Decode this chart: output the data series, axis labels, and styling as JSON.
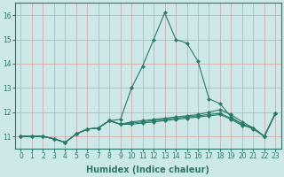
{
  "xlabel": "Humidex (Indice chaleur)",
  "background_color": "#cce8e8",
  "line_color": "#2a7a6a",
  "xlim": [
    -0.5,
    23.5
  ],
  "ylim": [
    10.5,
    16.5
  ],
  "yticks": [
    11,
    12,
    13,
    14,
    15,
    16
  ],
  "xticks": [
    0,
    1,
    2,
    3,
    4,
    5,
    6,
    7,
    8,
    9,
    10,
    11,
    12,
    13,
    14,
    15,
    16,
    17,
    18,
    19,
    20,
    21,
    22,
    23
  ],
  "series": [
    [
      11.0,
      11.0,
      11.0,
      10.9,
      10.75,
      11.1,
      11.3,
      11.35,
      11.65,
      11.7,
      13.0,
      13.9,
      15.0,
      16.1,
      15.0,
      14.85,
      14.1,
      12.55,
      12.35,
      11.8,
      11.5,
      11.3,
      11.0,
      11.95
    ],
    [
      11.0,
      11.0,
      11.0,
      10.9,
      10.75,
      11.1,
      11.3,
      11.35,
      11.65,
      11.5,
      11.6,
      11.65,
      11.7,
      11.75,
      11.8,
      11.85,
      11.9,
      12.0,
      12.1,
      11.9,
      11.6,
      11.35,
      11.0,
      11.95
    ],
    [
      11.0,
      11.0,
      11.0,
      10.9,
      10.75,
      11.1,
      11.3,
      11.35,
      11.65,
      11.5,
      11.55,
      11.6,
      11.65,
      11.7,
      11.75,
      11.8,
      11.85,
      11.9,
      11.95,
      11.75,
      11.5,
      11.35,
      11.0,
      11.95
    ],
    [
      11.0,
      11.0,
      11.0,
      10.9,
      10.75,
      11.1,
      11.3,
      11.35,
      11.65,
      11.5,
      11.5,
      11.55,
      11.6,
      11.65,
      11.7,
      11.75,
      11.8,
      11.85,
      11.9,
      11.7,
      11.45,
      11.35,
      11.0,
      11.95
    ]
  ],
  "marker": "D",
  "markersize": 2.0,
  "linewidth": 0.8,
  "grid_color": "#d4a0a0",
  "grid_linewidth": 0.5,
  "tick_fontsize": 5.5,
  "xlabel_fontsize": 7.0,
  "spine_color": "#2a7a6a"
}
